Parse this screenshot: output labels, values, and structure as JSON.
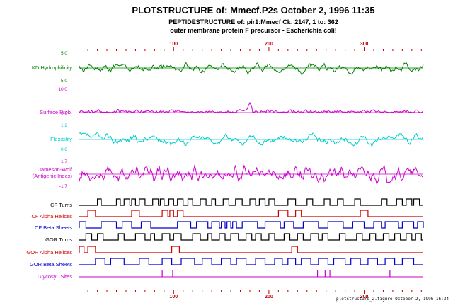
{
  "header": {
    "title": "PLOTSTRUCTURE of: Mmecf.P2s  October 2, 1996 11:35",
    "line2": "PEPTIDESTRUCTURE of: pir1:Mmecf  Ck: 2147, 1 to: 362",
    "line3": "outer membrane protein F precursor - Escherichia coli!"
  },
  "footer": "plotstructure_2.figure  October 2, 1996 16:34",
  "colors": {
    "green": "#008000",
    "magenta": "#cc00cc",
    "cyan": "#00cccc",
    "red": "#cc0000",
    "blue": "#0000cc",
    "black": "#000000"
  },
  "chart_data": {
    "type": "line",
    "x_range": [
      1,
      362
    ],
    "x_ticks": [
      100,
      200,
      300
    ],
    "tracks": [
      {
        "id": "kd",
        "label": "KD Hydrophilicity",
        "color": "green",
        "scale_top": "5.0",
        "scale_bottom": "-5.0",
        "kind": "profile"
      },
      {
        "id": "surface",
        "label": "Surface Prob.",
        "color": "magenta",
        "scale_top": "10.0",
        "scale_bottom": "0.0",
        "kind": "profile"
      },
      {
        "id": "flex",
        "label": "Flexibility",
        "color": "cyan",
        "scale_top": "1.2",
        "scale_bottom": "0.8",
        "kind": "profile"
      },
      {
        "id": "antigenic",
        "label": "Jameson-Wolf",
        "label2": "(Antigenic Index)",
        "color": "magenta",
        "scale_top": "1.7",
        "scale_bottom": "-1.7",
        "kind": "profile"
      },
      {
        "id": "cf_turns",
        "label": "CF Turns",
        "color": "black",
        "kind": "step",
        "segments": [
          [
            20,
            24
          ],
          [
            40,
            44
          ],
          [
            48,
            54
          ],
          [
            56,
            60
          ],
          [
            64,
            70
          ],
          [
            78,
            84
          ],
          [
            86,
            90
          ],
          [
            95,
            100
          ],
          [
            104,
            110
          ],
          [
            115,
            120
          ],
          [
            128,
            134
          ],
          [
            140,
            144
          ],
          [
            152,
            158
          ],
          [
            165,
            172
          ],
          [
            180,
            186
          ],
          [
            190,
            196
          ],
          [
            200,
            206
          ],
          [
            220,
            228
          ],
          [
            240,
            246
          ],
          [
            258,
            264
          ],
          [
            272,
            278
          ],
          [
            290,
            296
          ],
          [
            318,
            324
          ],
          [
            334,
            340
          ],
          [
            344,
            350
          ],
          [
            352,
            358
          ]
        ]
      },
      {
        "id": "cf_alpha",
        "label": "CF Alpha Helices",
        "color": "red",
        "kind": "step",
        "segments": [
          [
            10,
            18
          ],
          [
            56,
            64
          ],
          [
            88,
            94
          ],
          [
            96,
            100
          ],
          [
            104,
            110
          ],
          [
            210,
            220
          ],
          [
            228,
            234
          ],
          [
            296,
            304
          ]
        ]
      },
      {
        "id": "cf_beta",
        "label": "CF Beta Sheets",
        "color": "blue",
        "kind": "step",
        "segments": [
          [
            1,
            8
          ],
          [
            24,
            40
          ],
          [
            46,
            56
          ],
          [
            66,
            76
          ],
          [
            104,
            118
          ],
          [
            124,
            136
          ],
          [
            140,
            148
          ],
          [
            150,
            154
          ],
          [
            156,
            160
          ],
          [
            162,
            166
          ],
          [
            172,
            188
          ],
          [
            196,
            212
          ],
          [
            216,
            226
          ],
          [
            236,
            252
          ],
          [
            262,
            278
          ],
          [
            288,
            300
          ],
          [
            310,
            318
          ],
          [
            322,
            336
          ],
          [
            340,
            352
          ],
          [
            356,
            362
          ]
        ]
      },
      {
        "id": "gor_turns",
        "label": "GOR Turns",
        "color": "black",
        "kind": "step",
        "segments": [
          [
            8,
            14
          ],
          [
            20,
            26
          ],
          [
            42,
            48
          ],
          [
            60,
            70
          ],
          [
            76,
            80
          ],
          [
            88,
            96
          ],
          [
            100,
            108
          ],
          [
            120,
            128
          ],
          [
            136,
            140
          ],
          [
            148,
            154
          ],
          [
            160,
            168
          ],
          [
            176,
            182
          ],
          [
            186,
            192
          ],
          [
            200,
            206
          ],
          [
            216,
            222
          ],
          [
            230,
            236
          ],
          [
            244,
            252
          ],
          [
            256,
            262
          ],
          [
            274,
            280
          ],
          [
            292,
            298
          ],
          [
            306,
            312
          ],
          [
            320,
            326
          ],
          [
            332,
            338
          ],
          [
            344,
            350
          ],
          [
            354,
            360
          ]
        ]
      },
      {
        "id": "gor_alpha",
        "label": "GOR Alpha Helices",
        "color": "red",
        "kind": "step",
        "segments": [
          [
            1,
            6
          ],
          [
            10,
            18
          ],
          [
            98,
            106
          ],
          [
            224,
            230
          ]
        ]
      },
      {
        "id": "gor_beta",
        "label": "GOR Beta Sheets",
        "color": "blue",
        "kind": "step",
        "segments": [
          [
            18,
            28
          ],
          [
            34,
            48
          ],
          [
            64,
            74
          ],
          [
            88,
            98
          ],
          [
            108,
            122
          ],
          [
            130,
            140
          ],
          [
            150,
            160
          ],
          [
            166,
            176
          ],
          [
            186,
            196
          ],
          [
            206,
            214
          ],
          [
            220,
            228
          ],
          [
            234,
            244
          ],
          [
            252,
            262
          ],
          [
            268,
            280
          ],
          [
            286,
            296
          ],
          [
            304,
            314
          ],
          [
            322,
            332
          ],
          [
            340,
            352
          ]
        ]
      },
      {
        "id": "glyco",
        "label": "Glycosyl. Sites",
        "color": "magenta",
        "kind": "sticks",
        "positions": [
          88,
          99,
          251,
          259,
          264,
          327
        ]
      }
    ]
  }
}
